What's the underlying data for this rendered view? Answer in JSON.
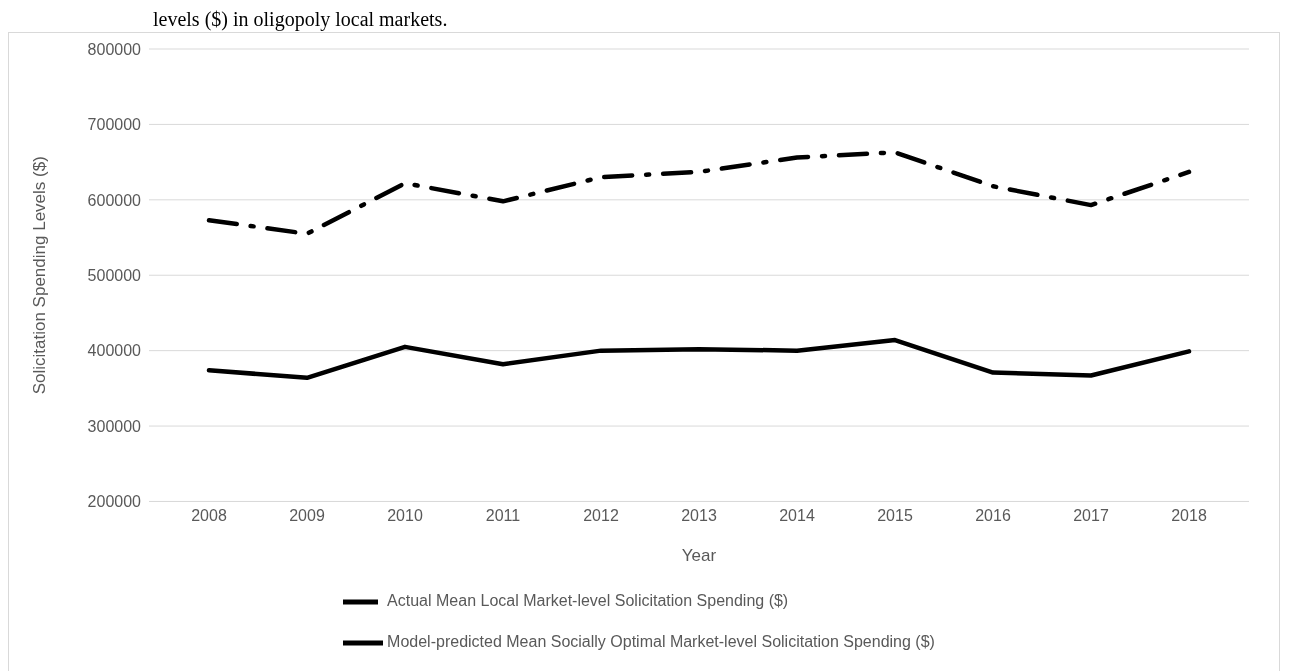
{
  "chart_data": {
    "type": "line",
    "title": "levels ($) in oligopoly local markets.",
    "xlabel": "Year",
    "ylabel": "Solicitation  Spending  Levels ($)",
    "categories": [
      "2008",
      "2009",
      "2010",
      "2011",
      "2012",
      "2013",
      "2014",
      "2015",
      "2016",
      "2017",
      "2018"
    ],
    "series": [
      {
        "name": "Actual Mean Local Market-level Solicitation Spending ($)",
        "color": "#000000",
        "line_style": "dashed",
        "values": [
          573000,
          555000,
          622000,
          598000,
          630000,
          637000,
          656000,
          663000,
          618000,
          593000,
          637000
        ]
      },
      {
        "name": "Model-predicted Mean Socially Optimal Market-level Solicitation Spending ($)",
        "color": "#000000",
        "line_style": "solid",
        "values": [
          374000,
          364000,
          405000,
          382000,
          400000,
          402000,
          400000,
          414000,
          371000,
          367000,
          399000
        ]
      }
    ],
    "ylim": [
      200000,
      800000
    ],
    "yticks": [
      200000,
      300000,
      400000,
      500000,
      600000,
      700000,
      800000
    ],
    "grid": "y",
    "legend": "bottom",
    "marker": "none"
  }
}
